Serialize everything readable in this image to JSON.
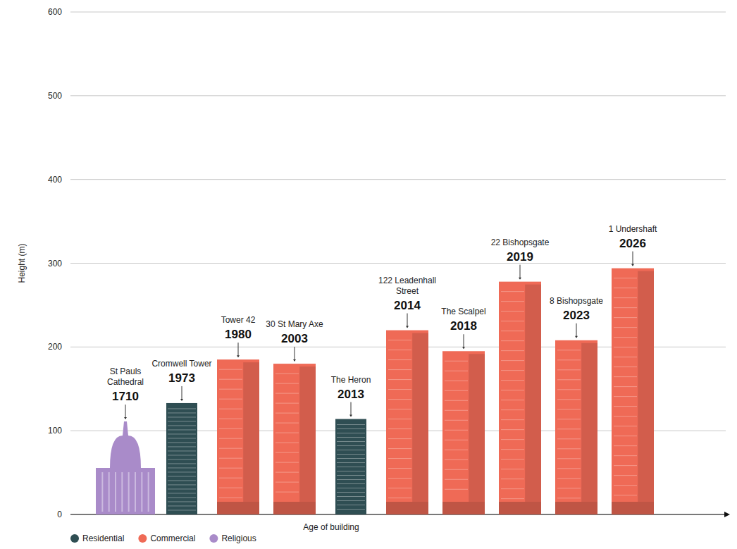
{
  "chart_data": {
    "type": "bar",
    "ylabel": "Height (m)",
    "xlabel": "Age of building",
    "categories": [
      "St Pauls Cathedral",
      "Cromwell Tower",
      "Tower 42",
      "30 St Mary Axe",
      "The Heron",
      "122 Leadenhall Street",
      "The Scalpel",
      "22 Bishopsgate",
      "8 Bishopsgate",
      "1 Undershaft"
    ],
    "years": [
      1710,
      1973,
      1980,
      2003,
      2013,
      2014,
      2018,
      2019,
      2023,
      2026
    ],
    "series": [
      {
        "name": "Residential",
        "color": "#2f4e53",
        "values": [
          null,
          133,
          null,
          null,
          114,
          null,
          null,
          null,
          null,
          null
        ]
      },
      {
        "name": "Commercial",
        "color": "#ef6a56",
        "values": [
          null,
          null,
          185,
          180,
          null,
          220,
          195,
          278,
          208,
          294
        ]
      },
      {
        "name": "Religious",
        "color": "#a98bc9",
        "values": [
          111,
          null,
          null,
          null,
          null,
          null,
          null,
          null,
          null,
          null
        ]
      }
    ],
    "ylim": [
      0,
      600
    ],
    "yticks": [
      0,
      100,
      200,
      300,
      400,
      500,
      600
    ],
    "grid": true,
    "legend": "bottom-left"
  }
}
